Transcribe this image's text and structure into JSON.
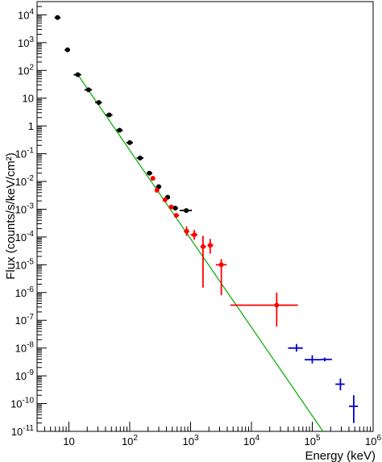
{
  "chart_data": {
    "type": "scatter",
    "x_scale": "log",
    "y_scale": "log",
    "xlim": [
      3,
      1000000
    ],
    "ylim": [
      1e-11,
      30000
    ],
    "xlabel": "Energy (keV)",
    "ylabel": "Flux (counts/s/keV/cm²)",
    "x_ticks": [
      {
        "value": 10,
        "base": "10",
        "exp": ""
      },
      {
        "value": 100,
        "base": "10",
        "exp": "2"
      },
      {
        "value": 1000,
        "base": "10",
        "exp": "3"
      },
      {
        "value": 10000,
        "base": "10",
        "exp": "4"
      },
      {
        "value": 100000,
        "base": "10",
        "exp": "5"
      },
      {
        "value": 1000000,
        "base": "10",
        "exp": "6"
      }
    ],
    "y_ticks": [
      {
        "value": 10000.0,
        "base": "10",
        "exp": "4"
      },
      {
        "value": 1000.0,
        "base": "10",
        "exp": "3"
      },
      {
        "value": 100.0,
        "base": "10",
        "exp": "2"
      },
      {
        "value": 10.0,
        "base": "10",
        "exp": ""
      },
      {
        "value": 1,
        "base": "1",
        "exp": ""
      },
      {
        "value": 0.1,
        "base": "10",
        "exp": "-1"
      },
      {
        "value": 0.01,
        "base": "10",
        "exp": "-2"
      },
      {
        "value": 0.001,
        "base": "10",
        "exp": "-3"
      },
      {
        "value": 0.0001,
        "base": "10",
        "exp": "-4"
      },
      {
        "value": 1e-05,
        "base": "10",
        "exp": "-5"
      },
      {
        "value": 1e-06,
        "base": "10",
        "exp": "-6"
      },
      {
        "value": 1e-07,
        "base": "10",
        "exp": "-7"
      },
      {
        "value": 1e-08,
        "base": "10",
        "exp": "-8"
      },
      {
        "value": 1e-09,
        "base": "10",
        "exp": "-9"
      },
      {
        "value": 1e-10,
        "base": "10",
        "exp": "-10"
      },
      {
        "value": 1e-11,
        "base": "10",
        "exp": "-11"
      }
    ],
    "series": [
      {
        "color": "#000000",
        "marker": "circle",
        "points": [
          {
            "x": 6.5,
            "y": 8000,
            "xlo": 5.8,
            "xhi": 7.3,
            "ylo": 8000,
            "yhi": 8000
          },
          {
            "x": 9.5,
            "y": 550,
            "xlo": 8.5,
            "xhi": 10.5,
            "ylo": 550,
            "yhi": 550
          },
          {
            "x": 14,
            "y": 70,
            "xlo": 12,
            "xhi": 16,
            "ylo": 70,
            "yhi": 70
          },
          {
            "x": 21,
            "y": 20,
            "xlo": 18,
            "xhi": 24,
            "ylo": 20,
            "yhi": 20
          },
          {
            "x": 31,
            "y": 7,
            "xlo": 27,
            "xhi": 35,
            "ylo": 7,
            "yhi": 7
          },
          {
            "x": 46,
            "y": 2.5,
            "xlo": 40,
            "xhi": 52,
            "ylo": 2.5,
            "yhi": 2.5
          },
          {
            "x": 68,
            "y": 0.7,
            "xlo": 60,
            "xhi": 77,
            "ylo": 0.7,
            "yhi": 0.7
          },
          {
            "x": 100,
            "y": 0.25,
            "xlo": 88,
            "xhi": 113,
            "ylo": 0.25,
            "yhi": 0.25
          },
          {
            "x": 148,
            "y": 0.07,
            "xlo": 130,
            "xhi": 168,
            "ylo": 0.07,
            "yhi": 0.07
          },
          {
            "x": 210,
            "y": 0.02,
            "xlo": 190,
            "xhi": 235,
            "ylo": 0.02,
            "yhi": 0.02
          },
          {
            "x": 300,
            "y": 0.0065,
            "xlo": 270,
            "xhi": 330,
            "ylo": 0.0065,
            "yhi": 0.0065
          },
          {
            "x": 420,
            "y": 0.0027,
            "xlo": 380,
            "xhi": 460,
            "ylo": 0.0027,
            "yhi": 0.0027
          },
          {
            "x": 560,
            "y": 0.0011,
            "xlo": 510,
            "xhi": 620,
            "ylo": 0.0011,
            "yhi": 0.0011
          },
          {
            "x": 850,
            "y": 0.0009,
            "xlo": 660,
            "xhi": 1050,
            "ylo": 0.0009,
            "yhi": 0.0009
          }
        ]
      },
      {
        "color": "#ff0000",
        "marker": "circle",
        "points": [
          {
            "x": 240,
            "y": 0.013,
            "xlo": 225,
            "xhi": 255,
            "ylo": 0.011,
            "yhi": 0.015
          },
          {
            "x": 280,
            "y": 0.0048,
            "xlo": 262,
            "xhi": 298,
            "ylo": 0.0042,
            "yhi": 0.0055
          },
          {
            "x": 380,
            "y": 0.0022,
            "xlo": 355,
            "xhi": 405,
            "ylo": 0.0019,
            "yhi": 0.0026
          },
          {
            "x": 480,
            "y": 0.0012,
            "xlo": 450,
            "xhi": 510,
            "ylo": 0.001,
            "yhi": 0.0014
          },
          {
            "x": 580,
            "y": 0.0006,
            "xlo": 540,
            "xhi": 650,
            "ylo": 0.00052,
            "yhi": 0.0007
          },
          {
            "x": 860,
            "y": 0.00016,
            "xlo": 780,
            "xhi": 950,
            "ylo": 0.00011,
            "yhi": 0.00024
          },
          {
            "x": 1150,
            "y": 0.00012,
            "xlo": 1000,
            "xhi": 1300,
            "ylo": 8e-05,
            "yhi": 0.00018
          },
          {
            "x": 1600,
            "y": 4.5e-05,
            "xlo": 1450,
            "xhi": 1800,
            "ylo": 1.5e-06,
            "yhi": 0.00011
          },
          {
            "x": 2100,
            "y": 5e-05,
            "xlo": 1900,
            "xhi": 2350,
            "ylo": 2.5e-05,
            "yhi": 8.5e-05
          },
          {
            "x": 3200,
            "y": 1e-05,
            "xlo": 2600,
            "xhi": 3900,
            "ylo": 8e-07,
            "yhi": 1.6e-05
          },
          {
            "x": 26000,
            "y": 3.5e-07,
            "xlo": 4500,
            "xhi": 58000,
            "ylo": 6e-08,
            "yhi": 1e-06
          }
        ]
      },
      {
        "color": "#0000cc",
        "marker": "none",
        "points": [
          {
            "x": 55000,
            "y": 1e-08,
            "xlo": 40000,
            "xhi": 70000,
            "ylo": 7.5e-09,
            "yhi": 1.4e-08
          },
          {
            "x": 100000,
            "y": 3.8e-09,
            "xlo": 75000,
            "xhi": 140000,
            "ylo": 2.8e-09,
            "yhi": 5.5e-09
          },
          {
            "x": 160000,
            "y": 3.9e-09,
            "xlo": 140000,
            "xhi": 210000,
            "ylo": 3.3e-09,
            "yhi": 4.5e-09
          },
          {
            "x": 290000,
            "y": 5e-10,
            "xlo": 240000,
            "xhi": 340000,
            "ylo": 3e-10,
            "yhi": 8e-10
          },
          {
            "x": 480000,
            "y": 8e-11,
            "xlo": 400000,
            "xhi": 560000,
            "ylo": 2e-11,
            "yhi": 2e-10
          }
        ]
      }
    ],
    "fit_line": {
      "color": "#00aa00",
      "points": [
        {
          "x": 14,
          "y": 70
        },
        {
          "x": 150000,
          "y": 1e-11
        }
      ]
    }
  }
}
